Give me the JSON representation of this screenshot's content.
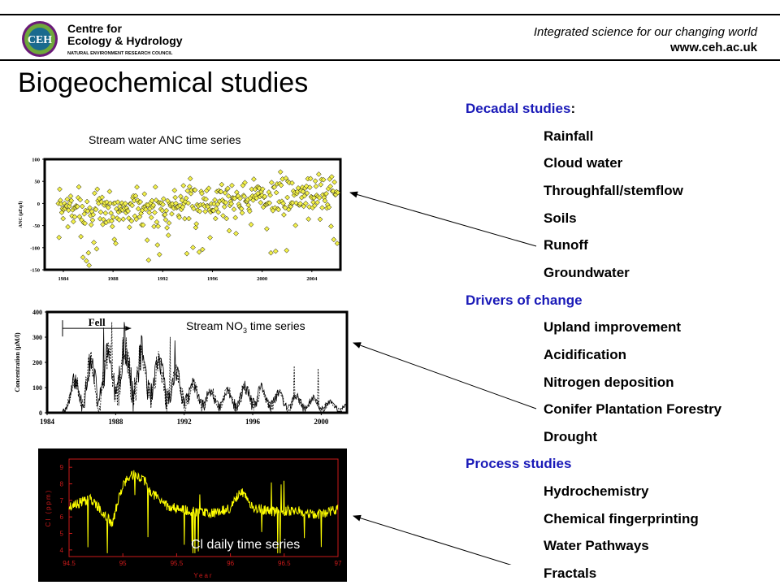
{
  "header": {
    "logo": {
      "initials": "CEH",
      "name_line1": "Centre for",
      "name_line2": "Ecology & Hydrology",
      "council": "NATURAL ENVIRONMENT RESEARCH COUNCIL",
      "colors": {
        "green": "#6fa83a",
        "blue": "#1a6a8e",
        "purple": "#6a1a78"
      }
    },
    "tagline": "Integrated science for our changing world",
    "url": "www.ceh.ac.uk"
  },
  "title": "Biogeochemical studies",
  "charts": {
    "anc": {
      "caption": "Stream water ANC time series"
    },
    "no3": {
      "caption_main": "Stream NO",
      "caption_sub": "3",
      "caption_tail": " time series",
      "fell_label": "Fell"
    },
    "cl": {
      "caption": "Cl daily time series"
    }
  },
  "chart_data": [
    {
      "type": "scatter",
      "title": "",
      "ylabel": "ANC (µEq/l)",
      "xlabel": "",
      "xlim": [
        1982.5,
        2006.3
      ],
      "ylim": [
        -150,
        100
      ],
      "xticks": [
        "1984",
        "1988",
        "1992",
        "1996",
        "2000",
        "2004"
      ],
      "yticks": [
        "100",
        "50",
        "0",
        "-50",
        "-100",
        "-150"
      ],
      "marker_color": "#f2f04a",
      "trend": {
        "x": [
          1983.5,
          1986,
          1990,
          1994,
          1998,
          2002,
          2006
        ],
        "y": [
          -12,
          -15,
          -10,
          0,
          12,
          18,
          28
        ]
      }
    },
    {
      "type": "line",
      "title": "",
      "ylabel": "Concentration (µM/l)",
      "xlabel": "",
      "xlim": [
        1984,
        2001.5
      ],
      "ylim": [
        0,
        400
      ],
      "xticks": [
        "1984",
        "1988",
        "1992",
        "1996",
        "2000"
      ],
      "yticks": [
        "400",
        "300",
        "200",
        "100",
        "0"
      ],
      "fell_period": [
        1984.9,
        1988.9
      ],
      "series": [
        {
          "x": [
            1984.9,
            1985.5,
            1986.2,
            1987,
            1988,
            1989,
            1990,
            1991,
            1992,
            1993,
            1994,
            1995,
            1996,
            1997,
            1998,
            1999,
            2000,
            2001,
            2001.5
          ],
          "y": [
            20,
            120,
            190,
            200,
            260,
            270,
            220,
            190,
            140,
            100,
            80,
            90,
            110,
            90,
            70,
            60,
            55,
            40,
            30
          ]
        }
      ]
    },
    {
      "type": "line",
      "title": "",
      "ylabel": "Cl (ppm)",
      "xlabel": "Year",
      "xlim": [
        94.5,
        97
      ],
      "ylim": [
        3.6,
        9.5
      ],
      "xticks": [
        "94.5",
        "95",
        "95.5",
        "96",
        "96.5",
        "97"
      ],
      "yticks": [
        "9",
        "8",
        "7",
        "6",
        "5",
        "4"
      ],
      "line_color": "#ffff00",
      "axis_color": "#cc1a1a",
      "background": "#000000",
      "series": [
        {
          "x": [
            94.5,
            94.7,
            94.8,
            94.9,
            95.0,
            95.1,
            95.2,
            95.25,
            95.4,
            95.6,
            95.8,
            96.0,
            96.1,
            96.2,
            96.4,
            96.6,
            96.8,
            97.0
          ],
          "y": [
            6.6,
            7.1,
            6.4,
            5.6,
            8.0,
            8.6,
            8.2,
            7.6,
            6.7,
            6.4,
            6.2,
            6.5,
            7.6,
            6.6,
            6.3,
            6.4,
            6.1,
            6.5
          ]
        }
      ]
    }
  ],
  "list": [
    {
      "text": "Decadal studies",
      "suffix": ":",
      "kind": "head"
    },
    {
      "text": "Rainfall",
      "kind": "sub"
    },
    {
      "text": "Cloud water",
      "kind": "sub"
    },
    {
      "text": "Throughfall/stemflow",
      "kind": "sub"
    },
    {
      "text": "Soils",
      "kind": "sub"
    },
    {
      "text": "Runoff",
      "kind": "sub"
    },
    {
      "text": "Groundwater",
      "kind": "sub"
    },
    {
      "text": "Drivers of change",
      "kind": "head"
    },
    {
      "text": "Upland improvement",
      "kind": "sub"
    },
    {
      "text": "Acidification",
      "kind": "sub"
    },
    {
      "text": "Nitrogen deposition",
      "kind": "sub"
    },
    {
      "text": "Conifer Plantation Forestry",
      "kind": "sub"
    },
    {
      "text": "Drought",
      "kind": "sub"
    },
    {
      "text": "Process studies",
      "kind": "head"
    },
    {
      "text": "Hydrochemistry",
      "kind": "sub"
    },
    {
      "text": "Chemical fingerprinting",
      "kind": "sub"
    },
    {
      "text": "Water Pathways",
      "kind": "sub"
    },
    {
      "text": "Fractals",
      "kind": "sub"
    }
  ]
}
